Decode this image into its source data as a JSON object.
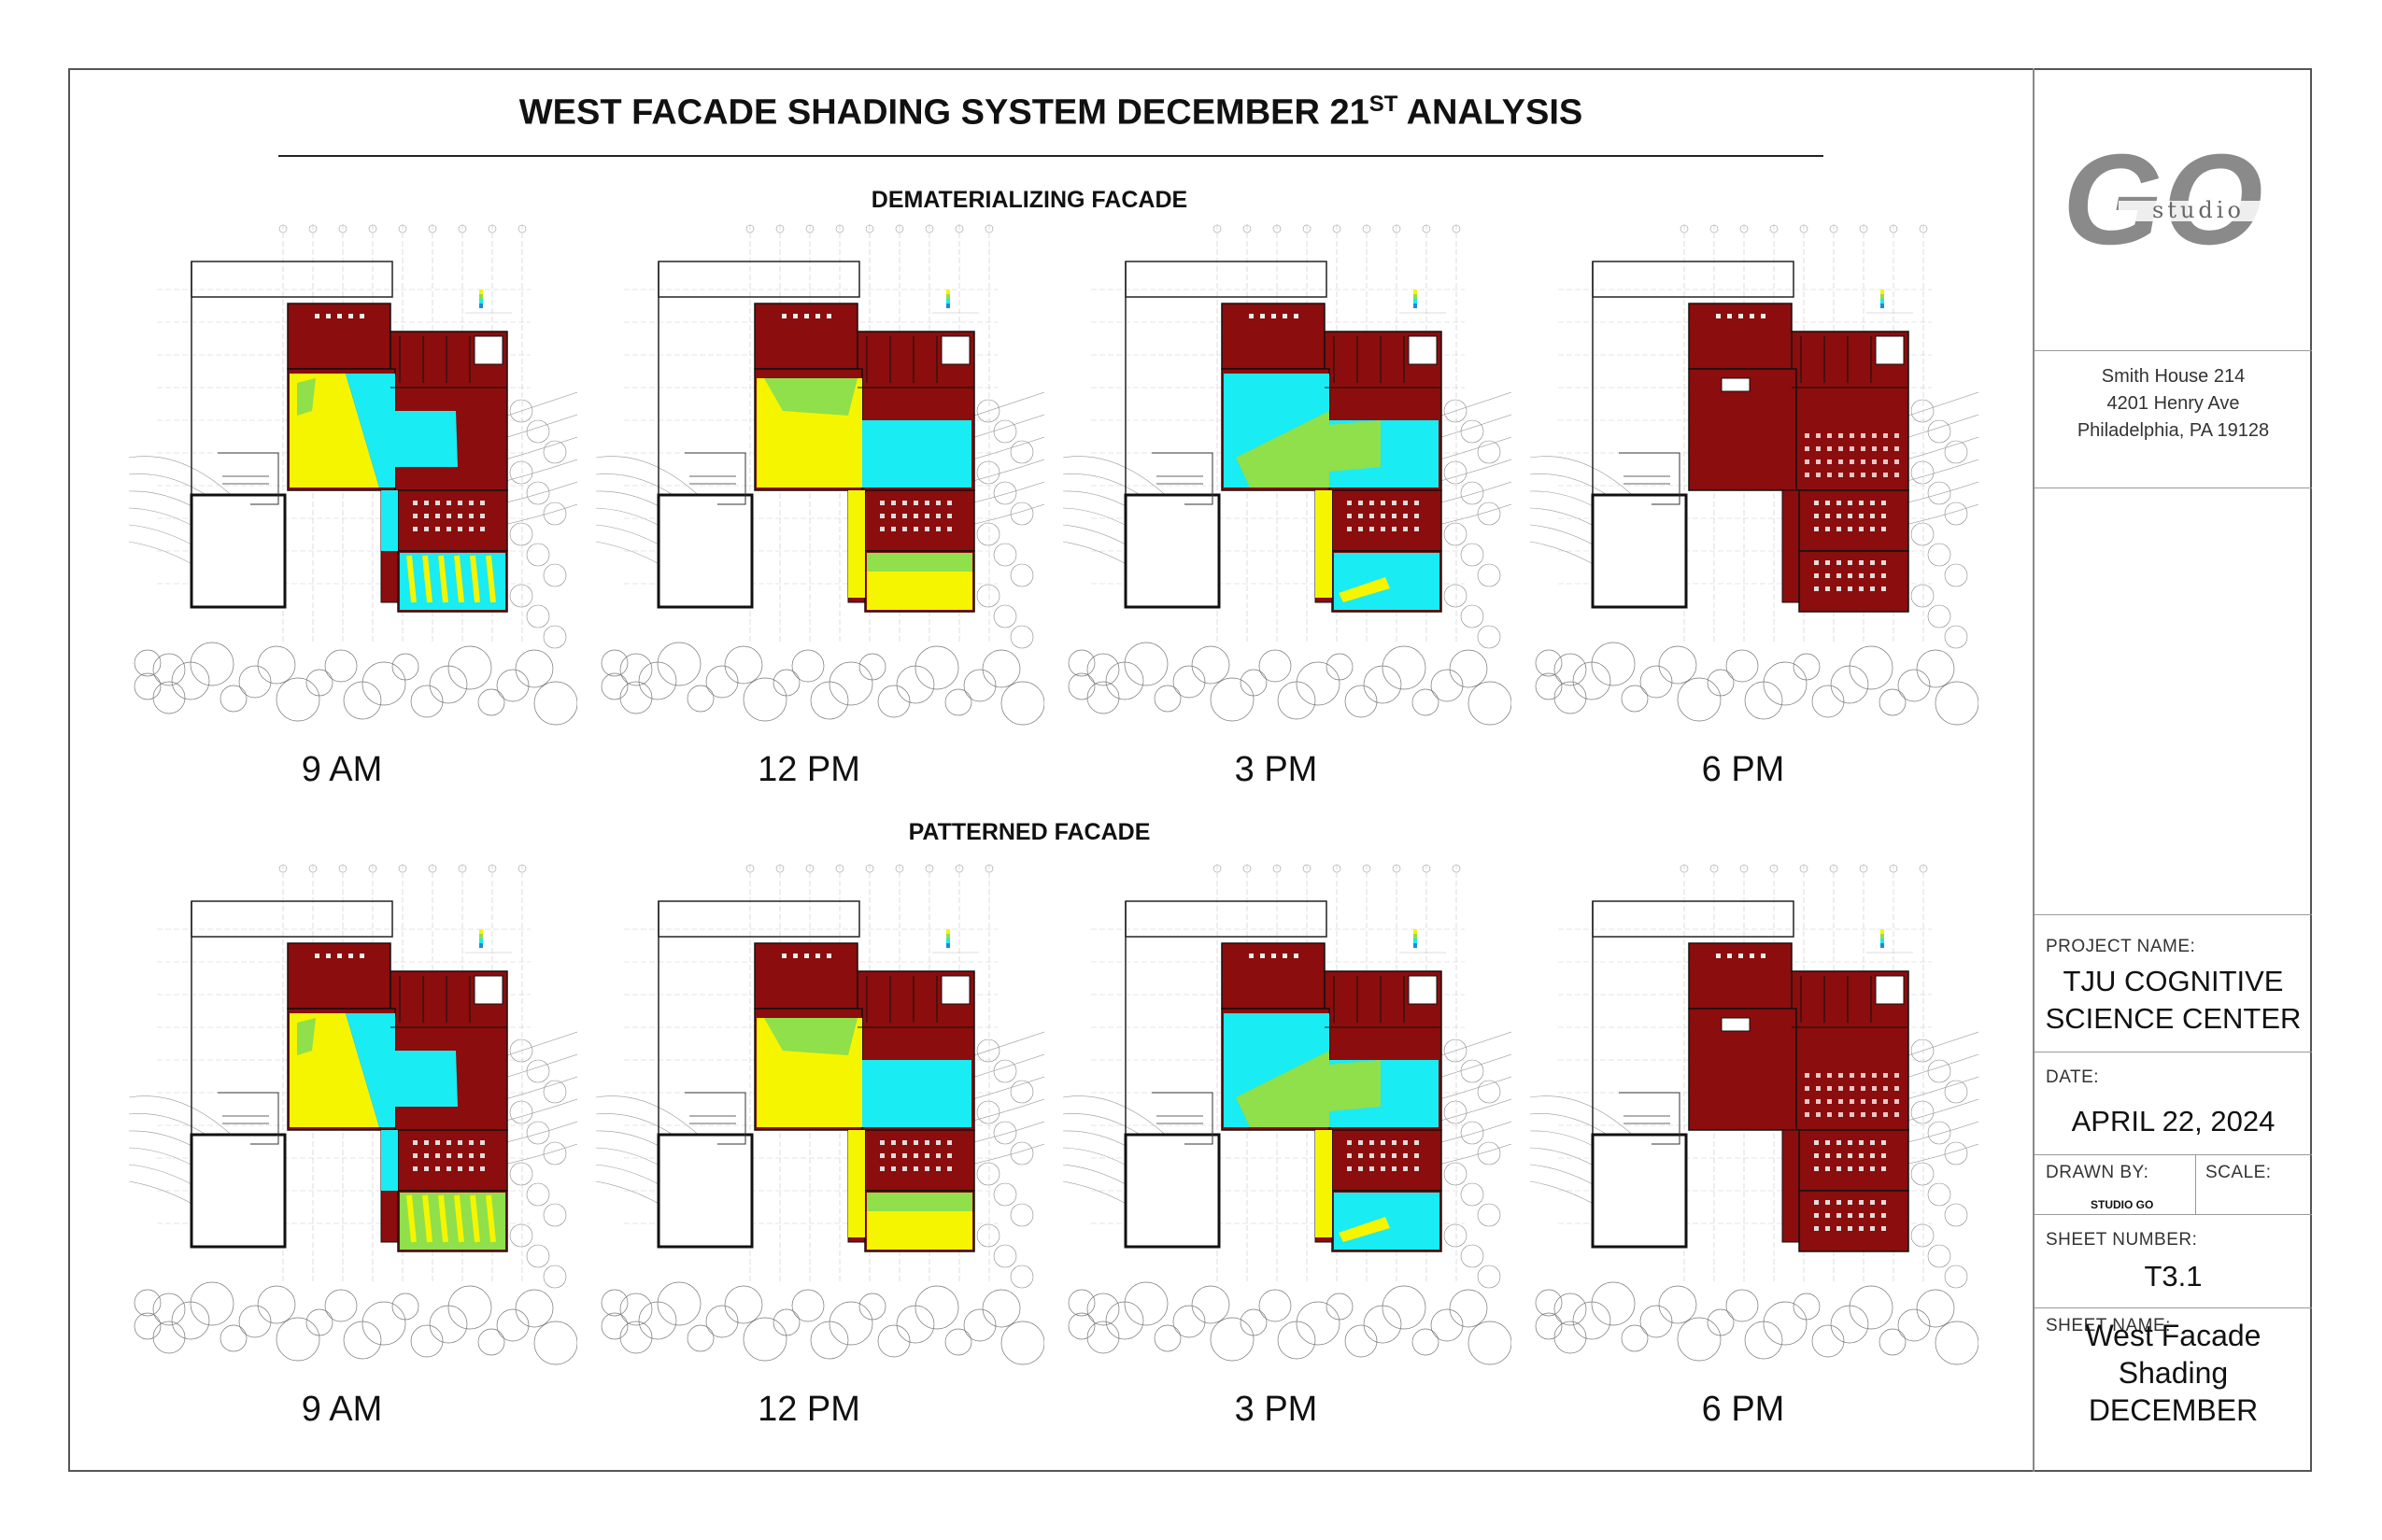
{
  "sheet": {
    "title": "WEST FACADE SHADING SYSTEM DECEMBER 21",
    "title_sup": "ST",
    "title_tail": " ANALYSIS"
  },
  "sections": [
    {
      "heading": "DEMATERIALIZING FACADE",
      "times": [
        "9 AM",
        "12 PM",
        "3 PM",
        "6 PM"
      ]
    },
    {
      "heading": "PATTERNED FACADE",
      "times": [
        "9 AM",
        "12 PM",
        "3 PM",
        "6 PM"
      ]
    }
  ],
  "titleblock": {
    "logo_main": "GO",
    "logo_sub": "studio",
    "address": [
      "Smith House 214",
      "4201 Henry Ave",
      "Philadelphia, PA 19128"
    ],
    "project_label": "PROJECT NAME:",
    "project_name": [
      "TJU COGNITIVE",
      "SCIENCE CENTER"
    ],
    "date_label": "DATE:",
    "date": "APRIL 22, 2024",
    "drawn_by_label": "DRAWN BY:",
    "drawn_by": "STUDIO GO",
    "scale_label": "SCALE:",
    "sheet_number_label": "SHEET NUMBER:",
    "sheet_number": "T3.1",
    "sheet_name_label": "SHEET NAME:",
    "sheet_name": [
      "West Facade",
      "Shading",
      "DECEMBER"
    ]
  },
  "colors": {
    "dark_red": "#8b0d0d",
    "yellow": "#f5f500",
    "cyan": "#19ecf2",
    "green": "#8fe04a",
    "line": "#222222"
  }
}
